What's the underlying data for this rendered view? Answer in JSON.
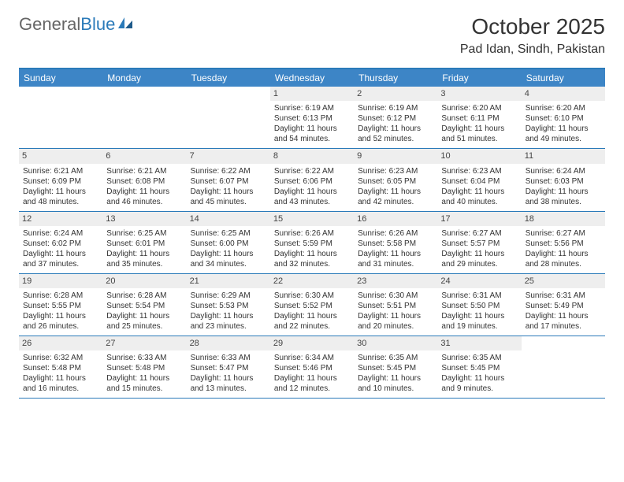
{
  "logo": {
    "part1": "General",
    "part2": "Blue"
  },
  "title": "October 2025",
  "location": "Pad Idan, Sindh, Pakistan",
  "colors": {
    "header_bg": "#3d85c6",
    "header_text": "#ffffff",
    "border": "#2a7ab9",
    "daynum_bg": "#eeeeee",
    "text": "#333333"
  },
  "day_headers": [
    "Sunday",
    "Monday",
    "Tuesday",
    "Wednesday",
    "Thursday",
    "Friday",
    "Saturday"
  ],
  "weeks": [
    [
      {
        "n": "",
        "empty": true
      },
      {
        "n": "",
        "empty": true
      },
      {
        "n": "",
        "empty": true
      },
      {
        "n": "1",
        "sr": "Sunrise: 6:19 AM",
        "ss": "Sunset: 6:13 PM",
        "dl": "Daylight: 11 hours and 54 minutes."
      },
      {
        "n": "2",
        "sr": "Sunrise: 6:19 AM",
        "ss": "Sunset: 6:12 PM",
        "dl": "Daylight: 11 hours and 52 minutes."
      },
      {
        "n": "3",
        "sr": "Sunrise: 6:20 AM",
        "ss": "Sunset: 6:11 PM",
        "dl": "Daylight: 11 hours and 51 minutes."
      },
      {
        "n": "4",
        "sr": "Sunrise: 6:20 AM",
        "ss": "Sunset: 6:10 PM",
        "dl": "Daylight: 11 hours and 49 minutes."
      }
    ],
    [
      {
        "n": "5",
        "sr": "Sunrise: 6:21 AM",
        "ss": "Sunset: 6:09 PM",
        "dl": "Daylight: 11 hours and 48 minutes."
      },
      {
        "n": "6",
        "sr": "Sunrise: 6:21 AM",
        "ss": "Sunset: 6:08 PM",
        "dl": "Daylight: 11 hours and 46 minutes."
      },
      {
        "n": "7",
        "sr": "Sunrise: 6:22 AM",
        "ss": "Sunset: 6:07 PM",
        "dl": "Daylight: 11 hours and 45 minutes."
      },
      {
        "n": "8",
        "sr": "Sunrise: 6:22 AM",
        "ss": "Sunset: 6:06 PM",
        "dl": "Daylight: 11 hours and 43 minutes."
      },
      {
        "n": "9",
        "sr": "Sunrise: 6:23 AM",
        "ss": "Sunset: 6:05 PM",
        "dl": "Daylight: 11 hours and 42 minutes."
      },
      {
        "n": "10",
        "sr": "Sunrise: 6:23 AM",
        "ss": "Sunset: 6:04 PM",
        "dl": "Daylight: 11 hours and 40 minutes."
      },
      {
        "n": "11",
        "sr": "Sunrise: 6:24 AM",
        "ss": "Sunset: 6:03 PM",
        "dl": "Daylight: 11 hours and 38 minutes."
      }
    ],
    [
      {
        "n": "12",
        "sr": "Sunrise: 6:24 AM",
        "ss": "Sunset: 6:02 PM",
        "dl": "Daylight: 11 hours and 37 minutes."
      },
      {
        "n": "13",
        "sr": "Sunrise: 6:25 AM",
        "ss": "Sunset: 6:01 PM",
        "dl": "Daylight: 11 hours and 35 minutes."
      },
      {
        "n": "14",
        "sr": "Sunrise: 6:25 AM",
        "ss": "Sunset: 6:00 PM",
        "dl": "Daylight: 11 hours and 34 minutes."
      },
      {
        "n": "15",
        "sr": "Sunrise: 6:26 AM",
        "ss": "Sunset: 5:59 PM",
        "dl": "Daylight: 11 hours and 32 minutes."
      },
      {
        "n": "16",
        "sr": "Sunrise: 6:26 AM",
        "ss": "Sunset: 5:58 PM",
        "dl": "Daylight: 11 hours and 31 minutes."
      },
      {
        "n": "17",
        "sr": "Sunrise: 6:27 AM",
        "ss": "Sunset: 5:57 PM",
        "dl": "Daylight: 11 hours and 29 minutes."
      },
      {
        "n": "18",
        "sr": "Sunrise: 6:27 AM",
        "ss": "Sunset: 5:56 PM",
        "dl": "Daylight: 11 hours and 28 minutes."
      }
    ],
    [
      {
        "n": "19",
        "sr": "Sunrise: 6:28 AM",
        "ss": "Sunset: 5:55 PM",
        "dl": "Daylight: 11 hours and 26 minutes."
      },
      {
        "n": "20",
        "sr": "Sunrise: 6:28 AM",
        "ss": "Sunset: 5:54 PM",
        "dl": "Daylight: 11 hours and 25 minutes."
      },
      {
        "n": "21",
        "sr": "Sunrise: 6:29 AM",
        "ss": "Sunset: 5:53 PM",
        "dl": "Daylight: 11 hours and 23 minutes."
      },
      {
        "n": "22",
        "sr": "Sunrise: 6:30 AM",
        "ss": "Sunset: 5:52 PM",
        "dl": "Daylight: 11 hours and 22 minutes."
      },
      {
        "n": "23",
        "sr": "Sunrise: 6:30 AM",
        "ss": "Sunset: 5:51 PM",
        "dl": "Daylight: 11 hours and 20 minutes."
      },
      {
        "n": "24",
        "sr": "Sunrise: 6:31 AM",
        "ss": "Sunset: 5:50 PM",
        "dl": "Daylight: 11 hours and 19 minutes."
      },
      {
        "n": "25",
        "sr": "Sunrise: 6:31 AM",
        "ss": "Sunset: 5:49 PM",
        "dl": "Daylight: 11 hours and 17 minutes."
      }
    ],
    [
      {
        "n": "26",
        "sr": "Sunrise: 6:32 AM",
        "ss": "Sunset: 5:48 PM",
        "dl": "Daylight: 11 hours and 16 minutes."
      },
      {
        "n": "27",
        "sr": "Sunrise: 6:33 AM",
        "ss": "Sunset: 5:48 PM",
        "dl": "Daylight: 11 hours and 15 minutes."
      },
      {
        "n": "28",
        "sr": "Sunrise: 6:33 AM",
        "ss": "Sunset: 5:47 PM",
        "dl": "Daylight: 11 hours and 13 minutes."
      },
      {
        "n": "29",
        "sr": "Sunrise: 6:34 AM",
        "ss": "Sunset: 5:46 PM",
        "dl": "Daylight: 11 hours and 12 minutes."
      },
      {
        "n": "30",
        "sr": "Sunrise: 6:35 AM",
        "ss": "Sunset: 5:45 PM",
        "dl": "Daylight: 11 hours and 10 minutes."
      },
      {
        "n": "31",
        "sr": "Sunrise: 6:35 AM",
        "ss": "Sunset: 5:45 PM",
        "dl": "Daylight: 11 hours and 9 minutes."
      },
      {
        "n": "",
        "empty": true
      }
    ]
  ]
}
